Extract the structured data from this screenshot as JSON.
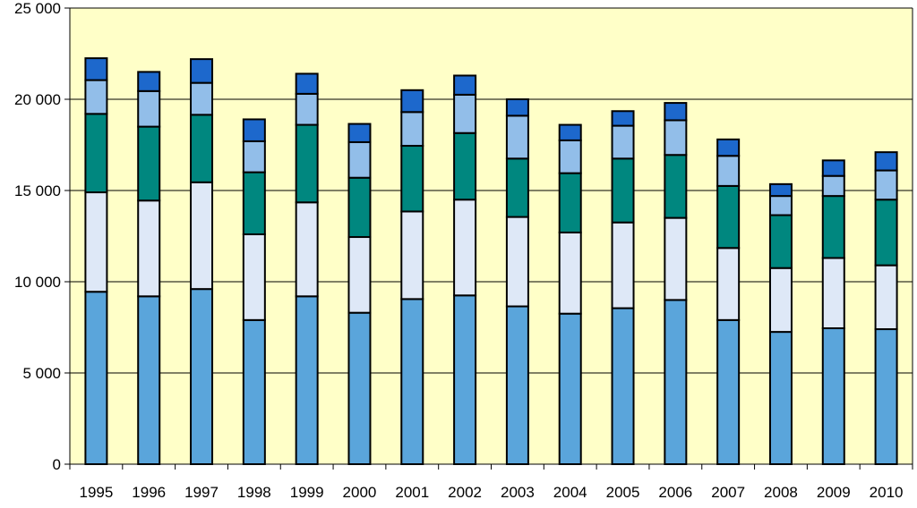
{
  "chart_data": {
    "type": "bar",
    "stacked": true,
    "categories": [
      "1995",
      "1996",
      "1997",
      "1998",
      "1999",
      "2000",
      "2001",
      "2002",
      "2003",
      "2004",
      "2005",
      "2006",
      "2007",
      "2008",
      "2009",
      "2010"
    ],
    "series": [
      {
        "color": "#5AA5DB",
        "values": [
          9450,
          9200,
          9600,
          7900,
          9200,
          8300,
          9050,
          9250,
          8650,
          8250,
          8550,
          9000,
          7900,
          7250,
          7450,
          7400
        ]
      },
      {
        "color": "#DEE8F7",
        "values": [
          5450,
          5250,
          5850,
          4700,
          5150,
          4150,
          4800,
          5250,
          4900,
          4450,
          4700,
          4500,
          3950,
          3500,
          3850,
          3500
        ]
      },
      {
        "color": "#00877F",
        "values": [
          4300,
          4050,
          3700,
          3400,
          4250,
          3250,
          3600,
          3650,
          3200,
          3250,
          3500,
          3450,
          3400,
          2900,
          3400,
          3600
        ]
      },
      {
        "color": "#92BEE9",
        "values": [
          1850,
          1950,
          1750,
          1700,
          1700,
          1950,
          1850,
          2100,
          2350,
          1800,
          1800,
          1900,
          1650,
          1050,
          1100,
          1600
        ]
      },
      {
        "color": "#1D68CC",
        "values": [
          1200,
          1050,
          1300,
          1200,
          1100,
          1000,
          1200,
          1050,
          900,
          850,
          800,
          950,
          900,
          650,
          850,
          1000
        ]
      }
    ],
    "y_tick_labels": [
      "0",
      "5 000",
      "10 000",
      "15 000",
      "20 000",
      "25 000"
    ],
    "ylim": [
      0,
      25000
    ],
    "grid": true,
    "legend": "none",
    "title": "",
    "xlabel": "",
    "ylabel": "",
    "plot_background": "#FFFFC8"
  }
}
